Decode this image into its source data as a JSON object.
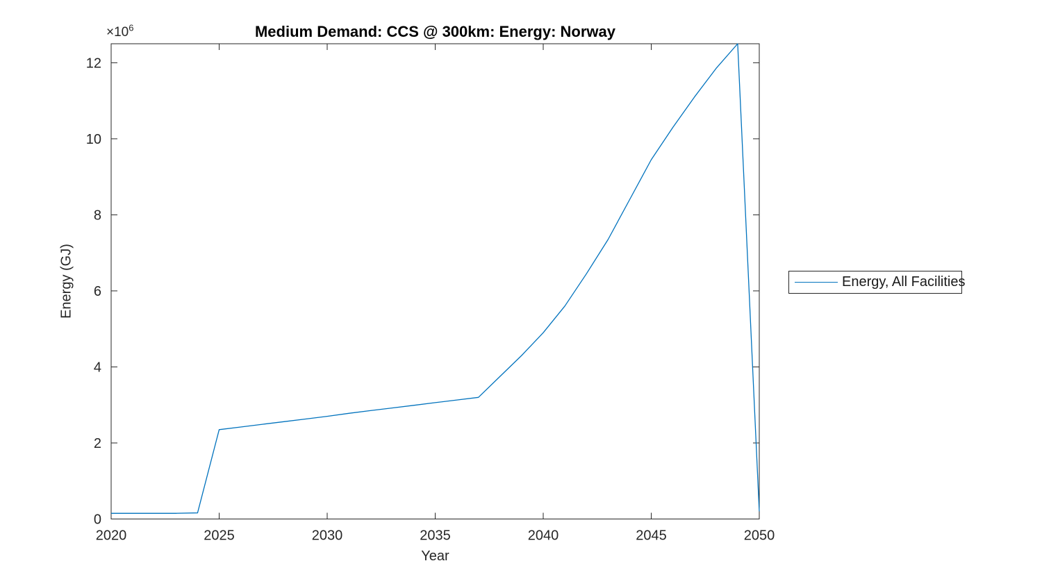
{
  "figure": {
    "background": "#ffffff"
  },
  "chart_data": {
    "type": "line",
    "title": "Medium Demand: CCS @ 300km: Energy: Norway",
    "xlabel": "Year",
    "ylabel": "Energy (GJ)",
    "y_exponent": {
      "base": "×10",
      "power": "6"
    },
    "xlim": [
      2020,
      2050
    ],
    "ylim": [
      0,
      12500000
    ],
    "x_ticks": [
      2020,
      2025,
      2030,
      2035,
      2040,
      2045,
      2050
    ],
    "x_tick_labels": [
      "2020",
      "2025",
      "2030",
      "2035",
      "2040",
      "2045",
      "2050"
    ],
    "y_ticks": [
      0,
      2000000,
      4000000,
      6000000,
      8000000,
      10000000,
      12000000
    ],
    "y_tick_labels": [
      "0",
      "2",
      "4",
      "6",
      "8",
      "10",
      "12"
    ],
    "grid": false,
    "box": true,
    "tick_direction": "in",
    "legend": {
      "position": "right-outside",
      "entries": [
        {
          "label": "Energy, All Facilities",
          "color": "#0072BD"
        }
      ]
    },
    "series": [
      {
        "name": "Energy, All Facilities",
        "color": "#0072BD",
        "x": [
          2020,
          2021,
          2022,
          2023,
          2024,
          2025,
          2026,
          2027,
          2028,
          2029,
          2030,
          2031,
          2032,
          2033,
          2034,
          2035,
          2036,
          2037,
          2038,
          2039,
          2040,
          2041,
          2042,
          2043,
          2044,
          2045,
          2046,
          2047,
          2048,
          2049,
          2050
        ],
        "values": [
          150000,
          150000,
          150000,
          150000,
          160000,
          2350000,
          2420000,
          2490000,
          2560000,
          2630000,
          2700000,
          2780000,
          2850000,
          2920000,
          2990000,
          3060000,
          3130000,
          3200000,
          3750000,
          4300000,
          4900000,
          5600000,
          6450000,
          7350000,
          8400000,
          9450000,
          10300000,
          11100000,
          11850000,
          12500000,
          200000
        ]
      }
    ]
  },
  "colors": {
    "line": "#0072BD",
    "axis": "#262626",
    "tick_label": "#262626",
    "title": "#000000",
    "legend_border": "#262626",
    "background": "#ffffff"
  }
}
